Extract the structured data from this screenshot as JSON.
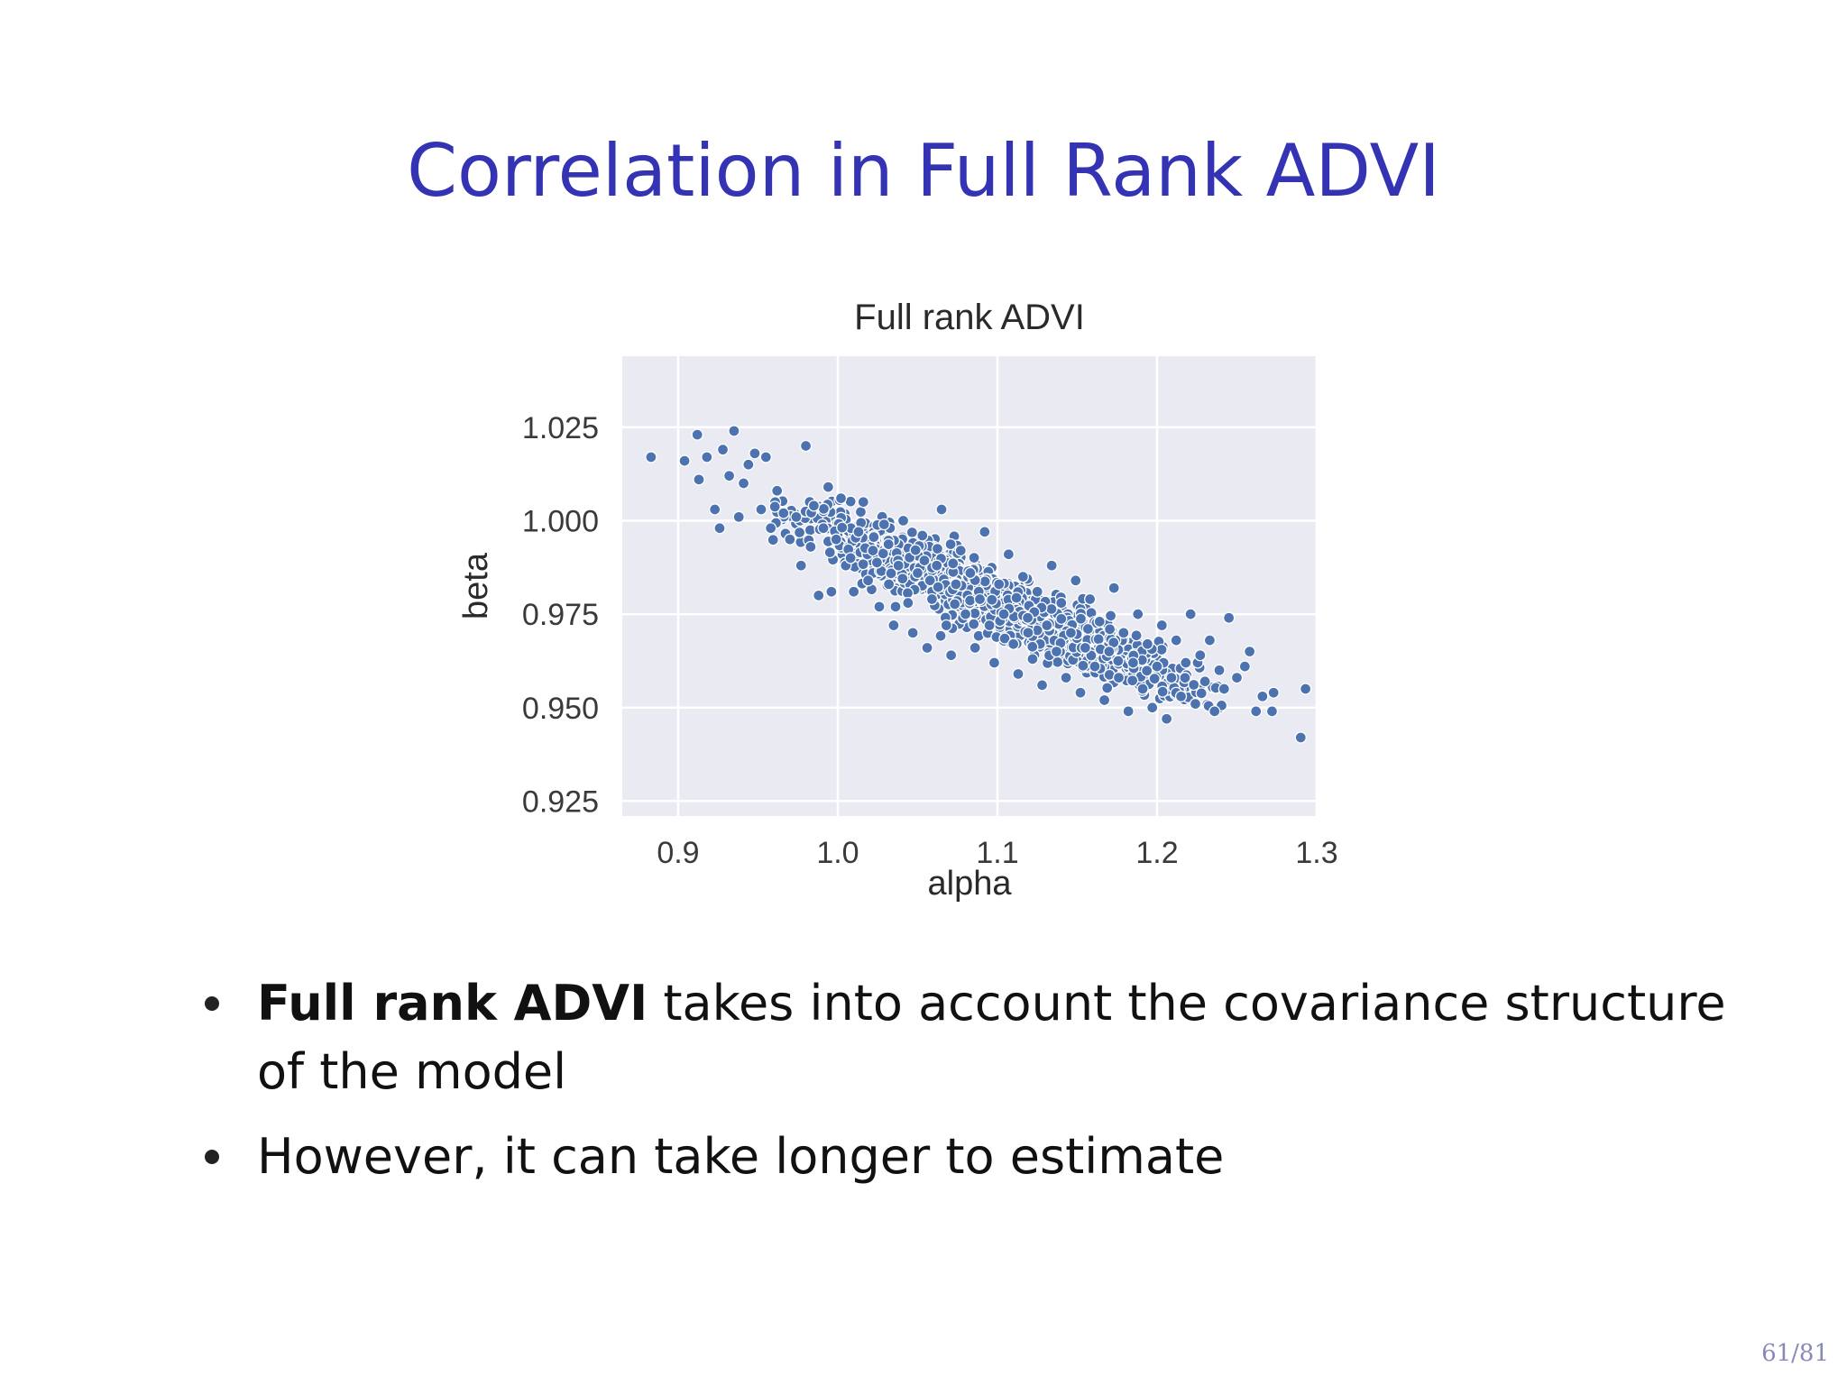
{
  "slide": {
    "title": "Correlation in Full Rank ADVI",
    "page": "61/81"
  },
  "bullets": [
    {
      "bold": "Full rank ADVI",
      "text": " takes into account the covariance structure of the model"
    },
    {
      "bold": "",
      "text": "However, it can take longer to estimate"
    }
  ],
  "colors": {
    "title": "#3333b3",
    "plot_bg": "#eaeaf2",
    "grid": "#ffffff",
    "point": "#4c72b0",
    "point_edge": "#ffffff"
  },
  "chart_data": {
    "type": "scatter",
    "title": "Full rank ADVI",
    "xlabel": "alpha",
    "ylabel": "beta",
    "xlim": [
      0.865,
      1.3
    ],
    "ylim": [
      0.921,
      1.044
    ],
    "xticks": [
      0.9,
      1.0,
      1.1,
      1.2,
      1.3
    ],
    "xtick_labels": [
      "0.9",
      "1.0",
      "1.1",
      "1.2",
      "1.3"
    ],
    "yticks": [
      0.925,
      0.95,
      0.975,
      1.0,
      1.025
    ],
    "ytick_labels": [
      "0.925",
      "0.950",
      "0.975",
      "1.000",
      "1.025"
    ],
    "grid": true,
    "legend": "none",
    "series": [
      {
        "points": [
          [
            0.883,
            1.017
          ],
          [
            0.904,
            1.016
          ],
          [
            0.912,
            1.023
          ],
          [
            0.913,
            1.011
          ],
          [
            0.918,
            1.017
          ],
          [
            0.923,
            1.003
          ],
          [
            0.926,
            0.998
          ],
          [
            0.928,
            1.019
          ],
          [
            0.932,
            1.012
          ],
          [
            0.935,
            1.024
          ],
          [
            0.938,
            1.001
          ],
          [
            0.941,
            1.01
          ],
          [
            0.944,
            1.015
          ],
          [
            0.948,
            1.018
          ],
          [
            0.952,
            1.003
          ],
          [
            0.955,
            1.017
          ],
          [
            0.958,
            0.998
          ],
          [
            0.962,
            1.008
          ],
          [
            0.966,
            1.002
          ],
          [
            0.97,
            0.995
          ],
          [
            0.974,
            1.001
          ],
          [
            0.977,
            0.988
          ],
          [
            0.98,
            1.02
          ],
          [
            0.983,
            0.993
          ],
          [
            0.985,
            1.004
          ],
          [
            0.988,
            0.98
          ],
          [
            0.991,
            0.998
          ],
          [
            0.994,
            1.009
          ],
          [
            0.996,
            0.981
          ],
          [
            0.999,
            0.995
          ],
          [
            1.002,
            1.006
          ],
          [
            1.005,
            0.988
          ],
          [
            1.008,
            0.99
          ],
          [
            1.01,
            0.981
          ],
          [
            1.013,
            0.997
          ],
          [
            1.016,
            1.005
          ],
          [
            1.019,
            0.984
          ],
          [
            1.022,
            0.992
          ],
          [
            1.026,
            0.977
          ],
          [
            1.029,
            0.999
          ],
          [
            1.032,
            0.983
          ],
          [
            1.035,
            0.972
          ],
          [
            1.038,
            0.988
          ],
          [
            1.041,
            1.0
          ],
          [
            1.044,
            0.978
          ],
          [
            1.047,
            0.97
          ],
          [
            1.05,
            0.986
          ],
          [
            1.053,
            0.996
          ],
          [
            1.056,
            0.966
          ],
          [
            1.059,
            0.979
          ],
          [
            1.062,
            0.988
          ],
          [
            1.065,
            1.003
          ],
          [
            1.068,
            0.972
          ],
          [
            1.071,
            0.964
          ],
          [
            1.074,
            0.983
          ],
          [
            1.077,
            0.992
          ],
          [
            1.08,
            0.975
          ],
          [
            1.083,
            0.986
          ],
          [
            1.086,
            0.966
          ],
          [
            1.089,
            0.979
          ],
          [
            1.092,
            0.997
          ],
          [
            1.095,
            0.972
          ],
          [
            1.098,
            0.962
          ],
          [
            1.101,
            0.983
          ],
          [
            1.104,
            0.975
          ],
          [
            1.107,
            0.991
          ],
          [
            1.11,
            0.967
          ],
          [
            1.113,
            0.959
          ],
          [
            1.116,
            0.985
          ],
          [
            1.119,
            0.974
          ],
          [
            1.122,
            0.963
          ],
          [
            1.125,
            0.981
          ],
          [
            1.128,
            0.956
          ],
          [
            1.131,
            0.972
          ],
          [
            1.134,
            0.988
          ],
          [
            1.137,
            0.965
          ],
          [
            1.14,
            0.978
          ],
          [
            1.143,
            0.958
          ],
          [
            1.146,
            0.97
          ],
          [
            1.149,
            0.984
          ],
          [
            1.152,
            0.954
          ],
          [
            1.155,
            0.966
          ],
          [
            1.158,
            0.979
          ],
          [
            1.161,
            0.961
          ],
          [
            1.164,
            0.973
          ],
          [
            1.167,
            0.952
          ],
          [
            1.17,
            0.965
          ],
          [
            1.173,
            0.982
          ],
          [
            1.176,
            0.958
          ],
          [
            1.179,
            0.97
          ],
          [
            1.182,
            0.949
          ],
          [
            1.185,
            0.962
          ],
          [
            1.188,
            0.975
          ],
          [
            1.191,
            0.955
          ],
          [
            1.194,
            0.967
          ],
          [
            1.197,
            0.95
          ],
          [
            1.2,
            0.961
          ],
          [
            1.203,
            0.972
          ],
          [
            1.206,
            0.947
          ],
          [
            1.209,
            0.958
          ],
          [
            1.212,
            0.968
          ],
          [
            1.215,
            0.953
          ],
          [
            1.218,
            0.962
          ],
          [
            1.221,
            0.975
          ],
          [
            1.224,
            0.951
          ],
          [
            1.227,
            0.964
          ],
          [
            1.23,
            0.957
          ],
          [
            1.233,
            0.968
          ],
          [
            1.236,
            0.949
          ],
          [
            1.239,
            0.96
          ],
          [
            1.242,
            0.955
          ],
          [
            1.245,
            0.974
          ],
          [
            1.25,
            0.958
          ],
          [
            1.255,
            0.961
          ],
          [
            1.258,
            0.965
          ],
          [
            1.262,
            0.949
          ],
          [
            1.266,
            0.953
          ],
          [
            1.272,
            0.949
          ],
          [
            1.273,
            0.954
          ],
          [
            1.29,
            0.942
          ],
          [
            1.293,
            0.955
          ]
        ],
        "cloud": {
          "count": 1400,
          "mean_alpha": 1.1,
          "sd_alpha": 0.062,
          "mean_beta": 0.978,
          "sd_beta": 0.0124,
          "correlation": -0.95
        }
      }
    ]
  }
}
